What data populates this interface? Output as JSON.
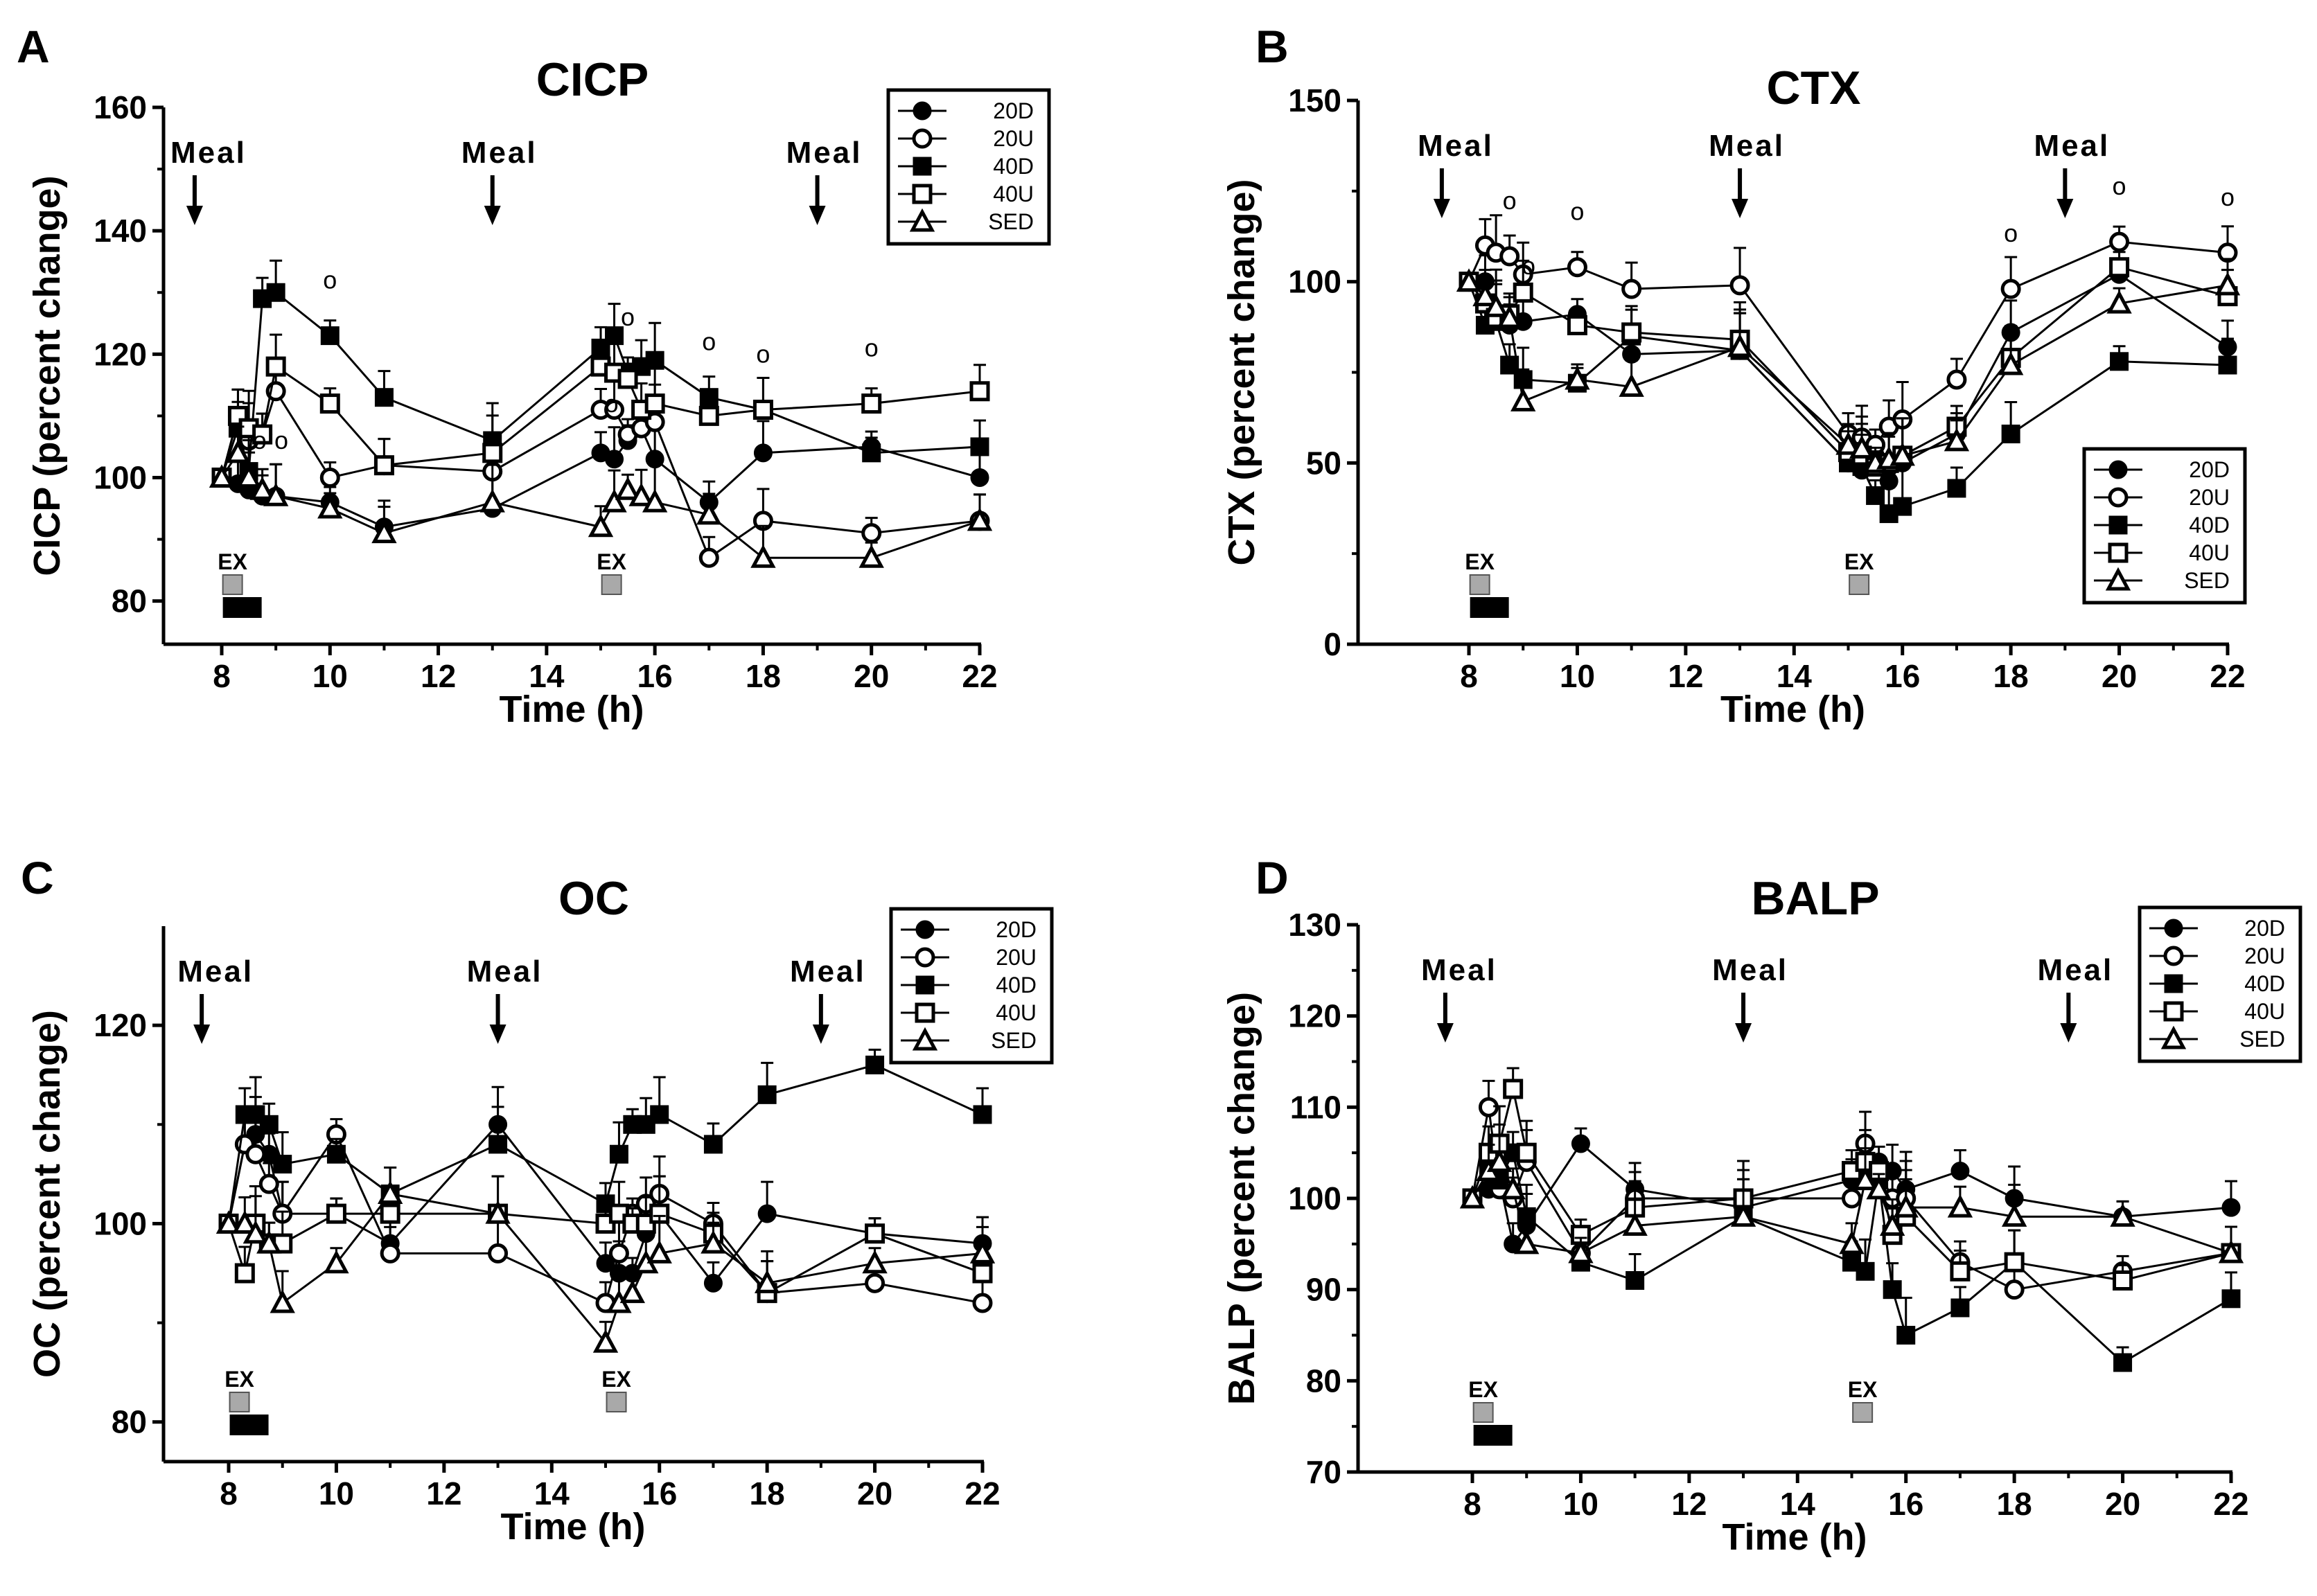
{
  "figure": {
    "colors": {
      "ink": "#000000",
      "exercise_marker": "#a9a9a9",
      "background": "#ffffff"
    },
    "markers": {
      "20D": "filled-circle",
      "20U": "open-circle",
      "40D": "filled-square",
      "40U": "open-square",
      "SED": "open-triangle"
    }
  },
  "chart_data": [
    {
      "panel": "A",
      "title": "CICP",
      "type": "line",
      "xlabel": "Time (h)",
      "ylabel": "CICP (percent change)",
      "xlim": [
        7.2,
        22
      ],
      "ylim": [
        73,
        160
      ],
      "xticks": [
        "8",
        "10",
        "12",
        "14",
        "16",
        "18",
        "20",
        "22"
      ],
      "yticks": [
        "80",
        "100",
        "120",
        "140",
        "160"
      ],
      "meal_label": "Meal",
      "meals": [
        7.5,
        13,
        19
      ],
      "ex_label": "EX",
      "ex_times": [
        8.2,
        15.2
      ],
      "legend": [
        "20D",
        "20U",
        "40D",
        "40U",
        "SED"
      ],
      "legend_position": "top-right",
      "significance_symbol": "o",
      "significance_times": [
        8.7,
        9.1,
        10,
        15.2,
        15.5,
        17,
        18,
        20
      ],
      "series": [
        {
          "name": "20D",
          "x": [
            8,
            8.3,
            8.5,
            8.75,
            9,
            10,
            11,
            13,
            15,
            15.25,
            15.5,
            15.75,
            16,
            17,
            18,
            20,
            22
          ],
          "values": [
            100,
            99,
            98,
            97,
            97,
            96,
            92,
            95,
            104,
            103,
            106,
            108,
            103,
            96,
            104,
            105,
            100
          ]
        },
        {
          "name": "20U",
          "x": [
            8,
            8.3,
            8.5,
            8.75,
            9,
            10,
            11,
            13,
            15,
            15.25,
            15.5,
            15.75,
            16,
            17,
            18,
            20,
            22
          ],
          "values": [
            100,
            110,
            106,
            107,
            114,
            100,
            102,
            101,
            111,
            111,
            107,
            108,
            109,
            87,
            93,
            91,
            93
          ]
        },
        {
          "name": "40D",
          "x": [
            8,
            8.3,
            8.5,
            8.75,
            9,
            10,
            11,
            13,
            15,
            15.25,
            15.5,
            15.75,
            16,
            17,
            18,
            20,
            22
          ],
          "values": [
            100,
            108,
            101,
            129,
            130,
            123,
            113,
            106,
            121,
            123,
            117,
            118,
            119,
            113,
            111,
            104,
            105
          ]
        },
        {
          "name": "40U",
          "x": [
            8,
            8.3,
            8.5,
            8.75,
            9,
            10,
            11,
            13,
            15,
            15.25,
            15.5,
            15.75,
            16,
            17,
            18,
            20,
            22
          ],
          "values": [
            100,
            110,
            108,
            107,
            118,
            112,
            102,
            104,
            118,
            117,
            116,
            111,
            112,
            110,
            111,
            112,
            114
          ]
        },
        {
          "name": "SED",
          "x": [
            8,
            8.3,
            8.5,
            8.75,
            9,
            10,
            11,
            13,
            15,
            15.25,
            15.5,
            15.75,
            16,
            17,
            18,
            20,
            22
          ],
          "values": [
            100,
            104,
            100,
            98,
            97,
            95,
            91,
            96,
            92,
            96,
            98,
            97,
            96,
            94,
            87,
            87,
            93
          ]
        }
      ]
    },
    {
      "panel": "B",
      "title": "CTX",
      "type": "line",
      "xlabel": "Time (h)",
      "ylabel": "CTX (percent change)",
      "xlim": [
        7.2,
        22
      ],
      "ylim": [
        0,
        150
      ],
      "xticks": [
        "8",
        "10",
        "12",
        "14",
        "16",
        "18",
        "20",
        "22"
      ],
      "yticks": [
        "0",
        "50",
        "100",
        "150"
      ],
      "meal_label": "Meal",
      "meals": [
        7.5,
        13,
        19
      ],
      "ex_label": "EX",
      "ex_times": [
        8.2,
        15.2
      ],
      "legend": [
        "20D",
        "20U",
        "40D",
        "40U",
        "SED"
      ],
      "legend_position": "bottom-right",
      "significance_symbol": "o",
      "significance_times": [
        8.75,
        9.1,
        10,
        18,
        20,
        22
      ],
      "series": [
        {
          "name": "20D",
          "x": [
            8,
            8.3,
            8.5,
            8.75,
            9,
            10,
            11,
            13,
            15,
            15.25,
            15.5,
            15.75,
            16,
            17,
            18,
            20,
            22
          ],
          "values": [
            100,
            100,
            90,
            88,
            89,
            91,
            80,
            81,
            50,
            48,
            52,
            45,
            50,
            58,
            86,
            102,
            82
          ]
        },
        {
          "name": "20U",
          "x": [
            8,
            8.3,
            8.5,
            8.75,
            9,
            10,
            11,
            13,
            15,
            15.25,
            15.5,
            15.75,
            16,
            17,
            18,
            20,
            22
          ],
          "values": [
            100,
            110,
            108,
            107,
            102,
            104,
            98,
            99,
            58,
            57,
            55,
            60,
            62,
            73,
            98,
            111,
            108
          ]
        },
        {
          "name": "40D",
          "x": [
            8,
            8.3,
            8.5,
            8.75,
            9,
            10,
            11,
            13,
            15,
            15.25,
            15.5,
            15.75,
            16,
            17,
            18,
            20,
            22
          ],
          "values": [
            100,
            88,
            89,
            77,
            73,
            72,
            85,
            81,
            50,
            49,
            41,
            36,
            38,
            43,
            58,
            78,
            77
          ]
        },
        {
          "name": "40U",
          "x": [
            8,
            8.3,
            8.5,
            8.75,
            9,
            10,
            11,
            13,
            15,
            15.25,
            15.5,
            15.75,
            16,
            17,
            18,
            20,
            22
          ],
          "values": [
            100,
            94,
            90,
            91,
            97,
            88,
            86,
            84,
            53,
            52,
            49,
            50,
            52,
            60,
            79,
            104,
            96
          ]
        },
        {
          "name": "SED",
          "x": [
            8,
            8.3,
            8.5,
            8.75,
            9,
            10,
            11,
            13,
            15,
            15.25,
            15.5,
            15.75,
            16,
            17,
            18,
            20,
            22
          ],
          "values": [
            100,
            96,
            93,
            90,
            67,
            73,
            71,
            82,
            55,
            54,
            50,
            51,
            52,
            56,
            77,
            94,
            99
          ]
        }
      ]
    },
    {
      "panel": "C",
      "title": "OC",
      "type": "line",
      "xlabel": "Time (h)",
      "ylabel": "OC (percent change)",
      "xlim": [
        7.2,
        22
      ],
      "ylim": [
        76,
        130
      ],
      "xticks": [
        "8",
        "10",
        "12",
        "14",
        "16",
        "18",
        "20",
        "22"
      ],
      "yticks": [
        "80",
        "100",
        "120"
      ],
      "meal_label": "Meal",
      "meals": [
        7.5,
        13,
        19
      ],
      "ex_label": "EX",
      "ex_times": [
        8.2,
        15.2
      ],
      "legend": [
        "20D",
        "20U",
        "40D",
        "40U",
        "SED"
      ],
      "legend_position": "top-right",
      "series": [
        {
          "name": "20D",
          "x": [
            8,
            8.3,
            8.5,
            8.75,
            9,
            10,
            11,
            13,
            15,
            15.25,
            15.5,
            15.75,
            16,
            17,
            18,
            20,
            22
          ],
          "values": [
            100,
            108,
            109,
            107,
            101,
            101,
            98,
            110,
            96,
            95,
            95,
            99,
            101,
            94,
            101,
            99,
            98
          ]
        },
        {
          "name": "20U",
          "x": [
            8,
            8.3,
            8.5,
            8.75,
            9,
            10,
            11,
            13,
            15,
            15.25,
            15.5,
            15.75,
            16,
            17,
            18,
            20,
            22
          ],
          "values": [
            100,
            108,
            107,
            104,
            101,
            109,
            97,
            97,
            92,
            97,
            101,
            102,
            103,
            100,
            93,
            94,
            92
          ]
        },
        {
          "name": "40D",
          "x": [
            8,
            8.3,
            8.5,
            8.75,
            9,
            10,
            11,
            13,
            15,
            15.25,
            15.5,
            15.75,
            16,
            17,
            18,
            20,
            22
          ],
          "values": [
            100,
            111,
            111,
            110,
            106,
            107,
            103,
            108,
            102,
            107,
            110,
            110,
            111,
            108,
            113,
            116,
            111
          ]
        },
        {
          "name": "40U",
          "x": [
            8,
            8.3,
            8.5,
            8.75,
            9,
            10,
            11,
            13,
            15,
            15.25,
            15.5,
            15.75,
            16,
            17,
            18,
            20,
            22
          ],
          "values": [
            100,
            95,
            100,
            98,
            98,
            101,
            101,
            101,
            100,
            101,
            100,
            100,
            101,
            99,
            93,
            99,
            95
          ]
        },
        {
          "name": "SED",
          "x": [
            8,
            8.3,
            8.5,
            8.75,
            9,
            10,
            11,
            13,
            15,
            15.25,
            15.5,
            15.75,
            16,
            17,
            18,
            20,
            22
          ],
          "values": [
            100,
            100,
            99,
            98,
            92,
            96,
            103,
            101,
            88,
            92,
            93,
            96,
            97,
            98,
            94,
            96,
            97
          ]
        }
      ]
    },
    {
      "panel": "D",
      "title": "BALP",
      "type": "line",
      "xlabel": "Time (h)",
      "ylabel": "BALP (percent change)",
      "xlim": [
        7.2,
        22
      ],
      "ylim": [
        70,
        130
      ],
      "xticks": [
        "8",
        "10",
        "12",
        "14",
        "16",
        "18",
        "20",
        "22"
      ],
      "yticks": [
        "70",
        "80",
        "90",
        "100",
        "110",
        "120",
        "130"
      ],
      "meal_label": "Meal",
      "meals": [
        7.5,
        13,
        19
      ],
      "ex_label": "EX",
      "ex_times": [
        8.2,
        15.2
      ],
      "legend": [
        "20D",
        "20U",
        "40D",
        "40U",
        "SED"
      ],
      "legend_position": "top-right",
      "series": [
        {
          "name": "20D",
          "x": [
            8,
            8.3,
            8.5,
            8.75,
            9,
            10,
            11,
            13,
            15,
            15.25,
            15.5,
            15.75,
            16,
            17,
            18,
            20,
            22
          ],
          "values": [
            100,
            101,
            102,
            95,
            97,
            106,
            101,
            99,
            102,
            103,
            104,
            103,
            101,
            103,
            100,
            98,
            99
          ]
        },
        {
          "name": "20U",
          "x": [
            8,
            8.3,
            8.5,
            8.75,
            9,
            10,
            11,
            13,
            15,
            15.25,
            15.5,
            15.75,
            16,
            17,
            18,
            20,
            22
          ],
          "values": [
            100,
            110,
            101,
            100,
            104,
            94,
            100,
            100,
            100,
            106,
            103,
            100,
            100,
            93,
            90,
            92,
            94
          ]
        },
        {
          "name": "40D",
          "x": [
            8,
            8.3,
            8.5,
            8.75,
            9,
            10,
            11,
            13,
            15,
            15.25,
            15.5,
            15.75,
            16,
            17,
            18,
            20,
            22
          ],
          "values": [
            100,
            103,
            102,
            105,
            98,
            93,
            91,
            98,
            93,
            92,
            102,
            90,
            85,
            88,
            93,
            82,
            89
          ]
        },
        {
          "name": "40U",
          "x": [
            8,
            8.3,
            8.5,
            8.75,
            9,
            10,
            11,
            13,
            15,
            15.25,
            15.5,
            15.75,
            16,
            17,
            18,
            20,
            22
          ],
          "values": [
            100,
            105,
            106,
            112,
            105,
            96,
            99,
            100,
            103,
            104,
            103,
            96,
            98,
            92,
            93,
            91,
            94
          ]
        },
        {
          "name": "SED",
          "x": [
            8,
            8.3,
            8.5,
            8.75,
            9,
            10,
            11,
            13,
            15,
            15.25,
            15.5,
            15.75,
            16,
            17,
            18,
            20,
            22
          ],
          "values": [
            100,
            103,
            104,
            101,
            95,
            94,
            97,
            98,
            95,
            102,
            101,
            97,
            99,
            99,
            98,
            98,
            94
          ]
        }
      ]
    }
  ]
}
